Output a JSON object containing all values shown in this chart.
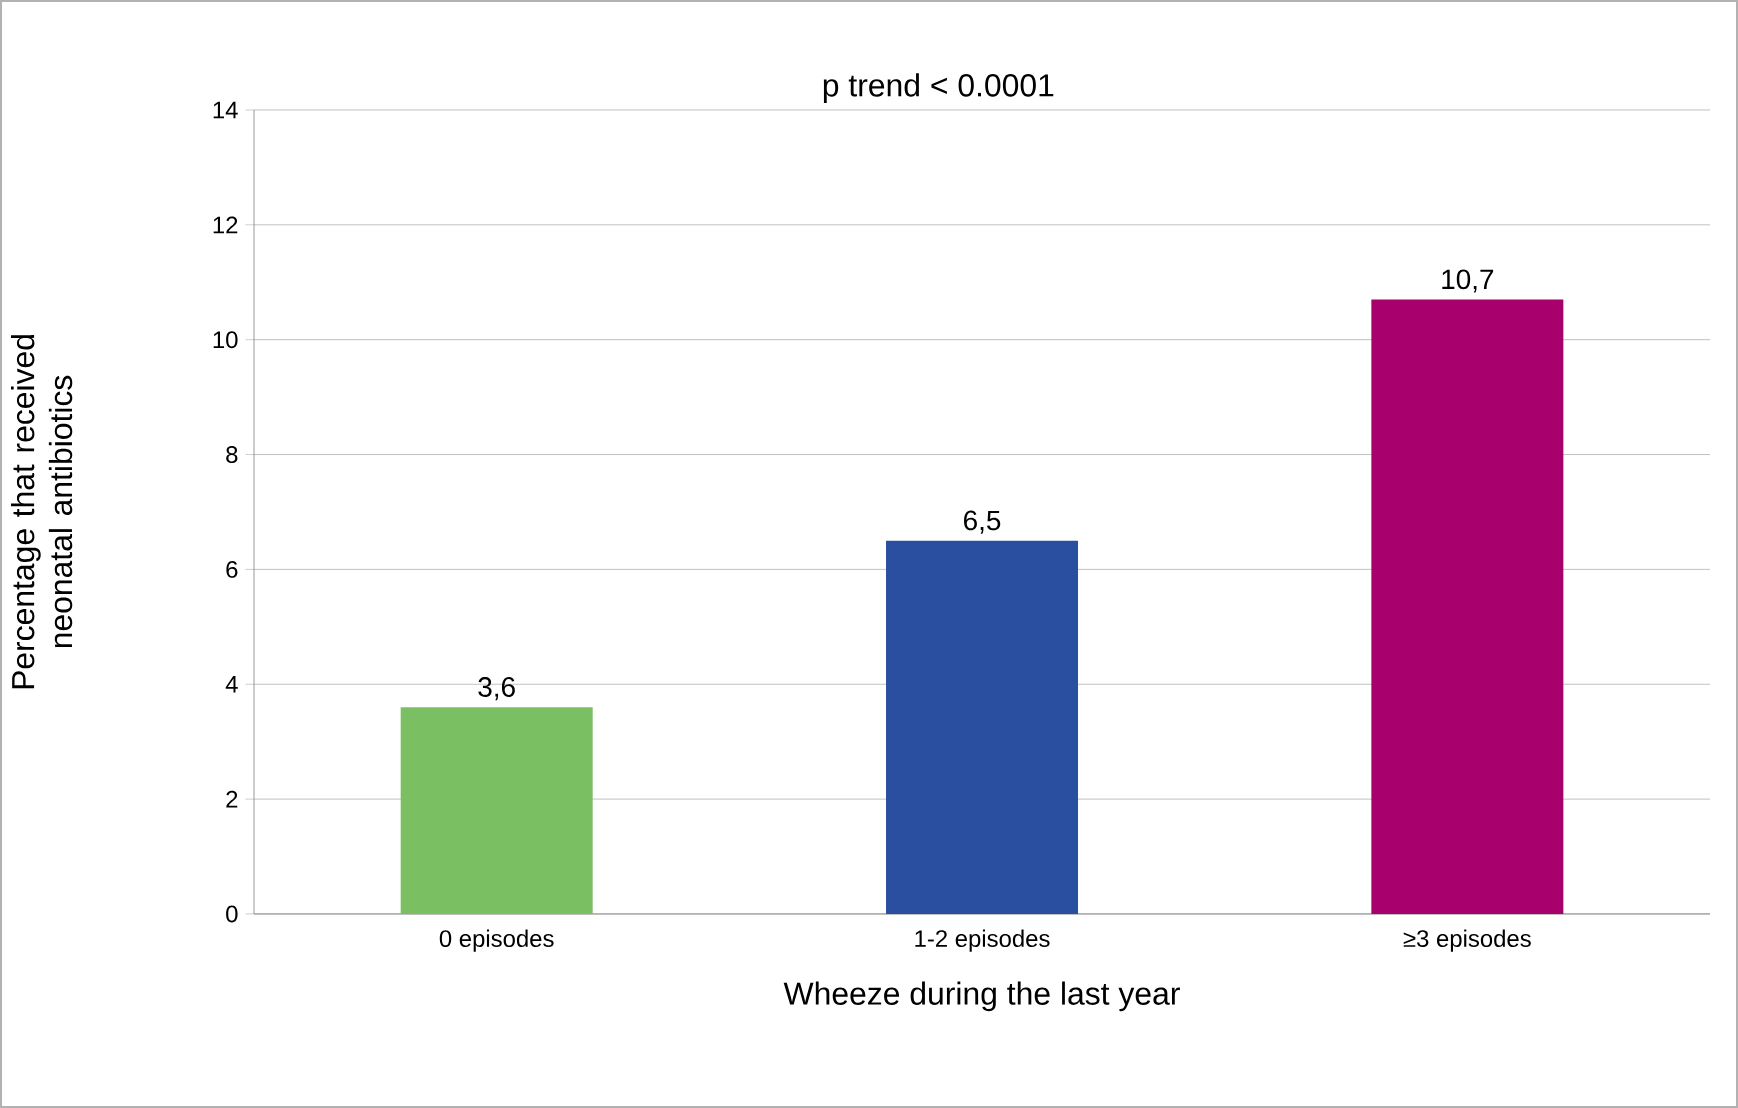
{
  "chart_data": {
    "type": "bar",
    "xlabel": "Wheeze during the last year",
    "ylabel": "Percentage that received neonatal antibiotics",
    "categories": [
      "0 episodes",
      "1-2 episodes",
      "≥3 episodes"
    ],
    "values": [
      3.6,
      6.5,
      10.7
    ],
    "colors": [
      "#7bbf63",
      "#2a4fa0",
      "#a8006c"
    ],
    "value_labels": [
      "3,6",
      "6,5",
      "10,7"
    ],
    "ylim": [
      0,
      14
    ],
    "yticks": [
      0,
      2,
      4,
      6,
      8,
      10,
      12,
      14
    ],
    "grid": "y",
    "annotations": [
      "p trend < 0.0001"
    ]
  }
}
